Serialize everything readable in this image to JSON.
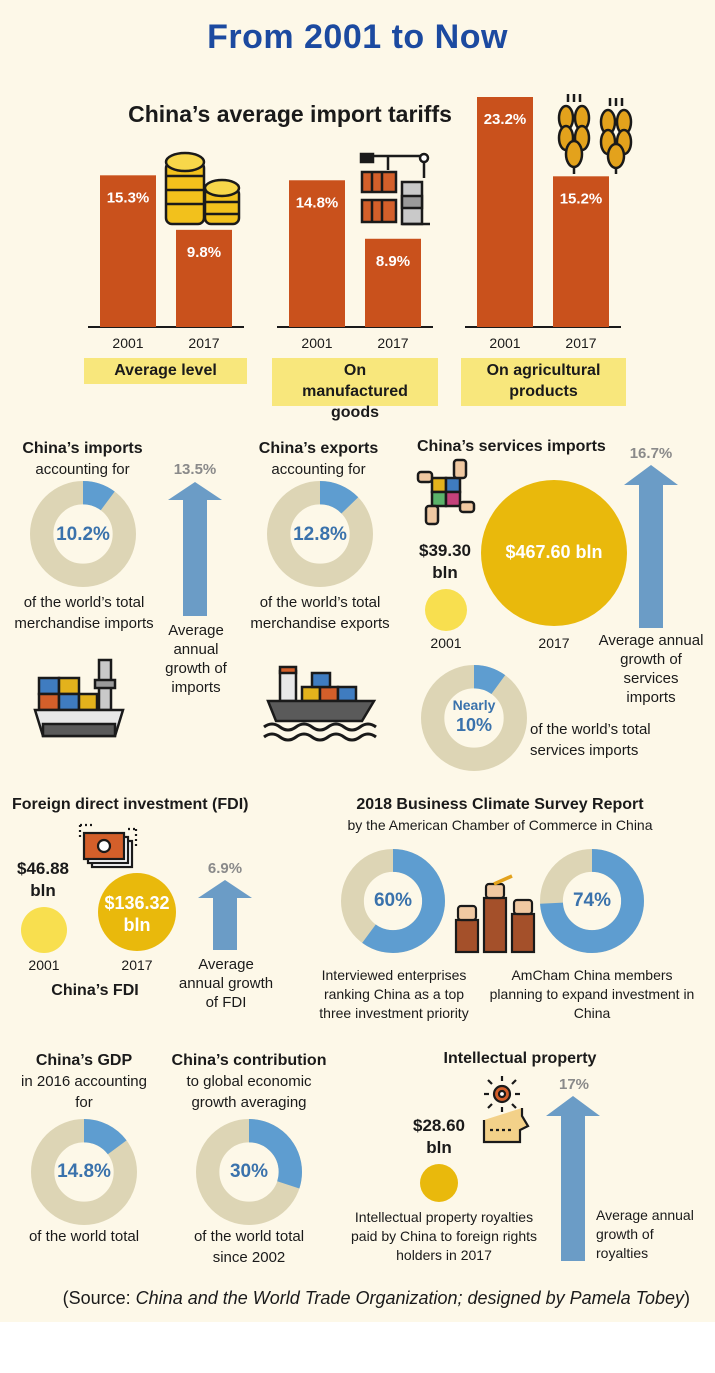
{
  "title": "From 2001 to Now",
  "tariffs": {
    "heading": "China’s average import tariffs",
    "groups": [
      {
        "label": "Average level",
        "years": [
          "2001",
          "2017"
        ],
        "values": [
          15.3,
          9.8
        ],
        "value_labels": [
          "15.3%",
          "9.8%"
        ]
      },
      {
        "label": "On manufactured goods",
        "years": [
          "2001",
          "2017"
        ],
        "values": [
          14.8,
          8.9
        ],
        "value_labels": [
          "14.8%",
          "8.9%"
        ]
      },
      {
        "label": "On agricultural products",
        "years": [
          "2001",
          "2017"
        ],
        "values": [
          23.2,
          15.2
        ],
        "value_labels": [
          "23.2%",
          "15.2%"
        ]
      }
    ]
  },
  "imports": {
    "title": "China’s imports",
    "sub": "accounting for",
    "share": 10.2,
    "share_label": "10.2%",
    "caption": "of the world’s total merchandise imports",
    "growth_label": "13.5%",
    "growth_caption": "Average annual growth of imports"
  },
  "exports": {
    "title": "China’s exports",
    "sub": "accounting for",
    "share": 12.8,
    "share_label": "12.8%",
    "caption": "of the world’s total merchandise exports"
  },
  "services": {
    "title": "China’s services imports",
    "value_2001": "$39.30 bln",
    "value_2017": "$467.60 bln",
    "year_2001": "2001",
    "year_2017": "2017",
    "growth_label": "16.7%",
    "growth_caption": "Average annual growth of services imports",
    "share": 10,
    "share_label_1": "Nearly",
    "share_label_2": "10%",
    "share_caption": "of the world’s total services imports"
  },
  "fdi": {
    "title": "Foreign direct investment (FDI)",
    "value_2001": "$46.88 bln",
    "value_2017": "$136.32 bln",
    "year_2001": "2001",
    "year_2017": "2017",
    "subtitle": "China’s FDI",
    "growth_label": "6.9%",
    "growth_caption": "Average annual growth of FDI"
  },
  "survey": {
    "title": "2018 Business Climate Survey Report",
    "sub": "by the American Chamber of Commerce in China",
    "left_share": 60,
    "left_label": "60%",
    "left_caption": "Interviewed enterprises ranking  China as a top three investment priority",
    "right_share": 74,
    "right_label": "74%",
    "right_caption": "AmCham China members planning to expand investment in China"
  },
  "gdp": {
    "title": "China’s GDP",
    "sub": "in 2016 accounting for",
    "share": 14.8,
    "share_label": "14.8%",
    "caption": "of the world total"
  },
  "contribution": {
    "title": "China’s contribution",
    "sub": "to  global economic growth averaging",
    "share": 30,
    "share_label": "30%",
    "caption": "of the world total since 2002"
  },
  "ip": {
    "title": "Intellectual property",
    "value": "$28.60 bln",
    "caption": "Intellectual property royalties paid by China to foreign rights holders in 2017",
    "growth_label": "17%",
    "growth_caption": "Average annual growth of royalties"
  },
  "source": {
    "prefix": "(Source: ",
    "italic": "China and the World Trade Organization; designed by Pamela Tobey",
    "suffix": ")"
  },
  "colors": {
    "bar": "#c9511c",
    "donut_track": "#ddd5b5",
    "donut_fill": "#5e9dd0",
    "arrow": "#6b9cc6",
    "gold": "#e9b90c",
    "light_gold": "#f8df4f",
    "title_blue": "#1c4aa0",
    "label_box": "#f8e77c"
  },
  "chart_data": [
    {
      "type": "bar",
      "title": "China’s average import tariffs",
      "categories": [
        "Average level",
        "On manufactured goods",
        "On agricultural products"
      ],
      "series": [
        {
          "name": "2001",
          "values": [
            15.3,
            14.8,
            23.2
          ]
        },
        {
          "name": "2017",
          "values": [
            9.8,
            8.9,
            15.2
          ]
        }
      ],
      "ylim": [
        0,
        23.2
      ]
    },
    {
      "type": "pie",
      "title": "China’s imports",
      "values": [
        10.2,
        89.8
      ]
    },
    {
      "type": "pie",
      "title": "China’s exports",
      "values": [
        12.8,
        87.2
      ]
    },
    {
      "type": "pie",
      "title": "China’s services imports",
      "values": [
        10,
        90
      ]
    },
    {
      "type": "pie",
      "title": "2018 Business Climate Survey Report",
      "values": [
        60,
        40
      ]
    },
    {
      "type": "pie",
      "title": "2018 Business Climate Survey Report",
      "values": [
        74,
        26
      ]
    },
    {
      "type": "pie",
      "title": "China’s GDP",
      "values": [
        14.8,
        85.2
      ]
    },
    {
      "type": "pie",
      "title": "China’s contribution",
      "values": [
        30,
        70
      ]
    }
  ]
}
